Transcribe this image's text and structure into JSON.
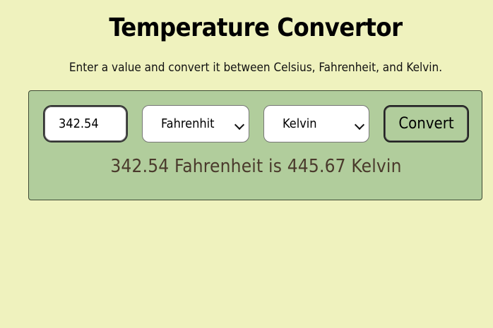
{
  "header": {
    "title": "Temperature Convertor",
    "subtitle": "Enter a value and convert it between Celsius, Fahrenheit, and Kelvin."
  },
  "form": {
    "value": "342.54",
    "from_unit": "Fahrenhit",
    "to_unit": "Kelvin",
    "convert_label": "Convert"
  },
  "result": {
    "text": "342.54 Fahrenheit is 445.67 Kelvin"
  },
  "colors": {
    "page_background": "#eff2be",
    "panel_background": "#b1cd9c",
    "result_text": "#4a3a2c"
  }
}
